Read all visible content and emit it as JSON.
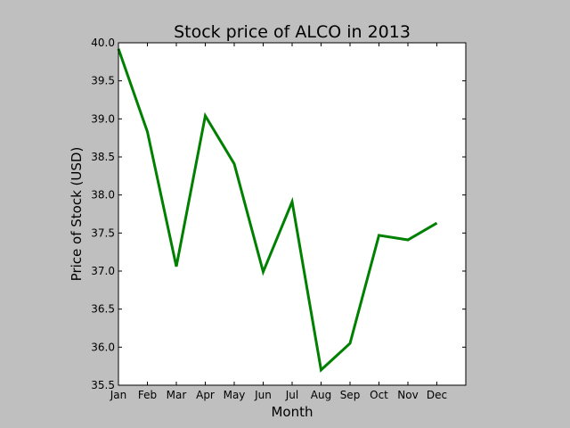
{
  "chart_data": {
    "type": "line",
    "title": "Stock price of ALCO in 2013",
    "xlabel": "Month",
    "ylabel": "Price of Stock (USD)",
    "categories": [
      "Jan",
      "Feb",
      "Mar",
      "Apr",
      "May",
      "Jun",
      "Jul",
      "Aug",
      "Sep",
      "Oct",
      "Nov",
      "Dec"
    ],
    "series": [
      {
        "values": [
          39.92,
          38.83,
          37.06,
          39.04,
          38.41,
          36.99,
          37.91,
          35.7,
          36.05,
          37.47,
          37.41,
          37.63
        ]
      }
    ],
    "ylim": [
      35.5,
      40.0
    ],
    "yticks": [
      "35.5",
      "36.0",
      "36.5",
      "37.0",
      "37.5",
      "38.0",
      "38.5",
      "39.0",
      "39.5",
      "40.0"
    ],
    "grid": false,
    "line_color": "#008000",
    "background_color": "#bfbfbf",
    "plot_background_color": "#ffffff"
  }
}
